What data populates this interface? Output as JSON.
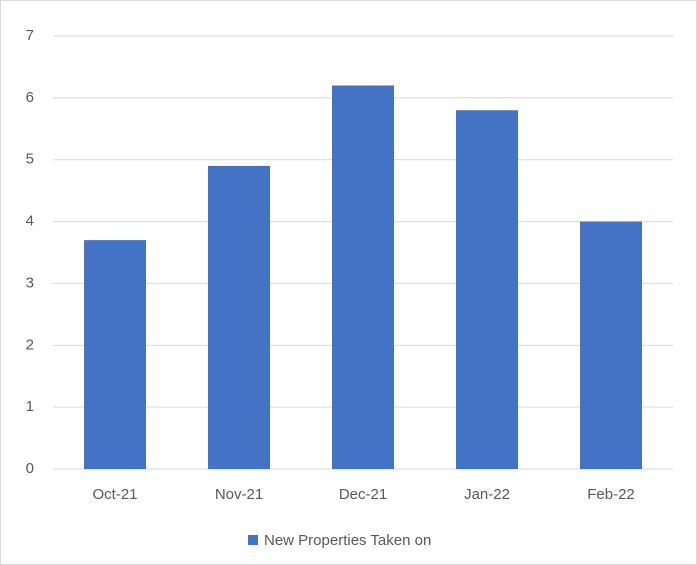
{
  "chart_data": {
    "type": "bar",
    "categories": [
      "Oct-21",
      "Nov-21",
      "Dec-21",
      "Jan-22",
      "Feb-22"
    ],
    "series": [
      {
        "name": "New Properties Taken on",
        "color": "#4472c4",
        "values": [
          3.7,
          4.9,
          6.2,
          5.8,
          4.0
        ]
      }
    ],
    "ylim": [
      0,
      7
    ],
    "yticks": [
      0,
      1,
      2,
      3,
      4,
      5,
      6,
      7
    ],
    "grid": true,
    "legend": "bottom"
  }
}
